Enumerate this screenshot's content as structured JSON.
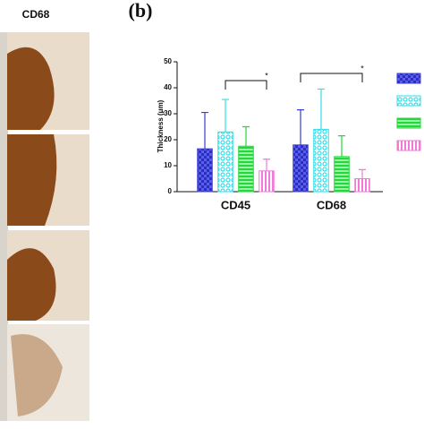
{
  "panel_label": "CD68",
  "chart_data": {
    "type": "bar",
    "panel": "(b)",
    "ylabel": "Thickness (μm)",
    "categories": [
      "CD45",
      "CD68"
    ],
    "ylim": [
      0,
      50
    ],
    "yticks": [
      0,
      10,
      20,
      30,
      40,
      50
    ],
    "series": [
      {
        "color": "#3b3fd6",
        "pattern": "check",
        "values": [
          16.5,
          18
        ],
        "errors": [
          14,
          13.5
        ]
      },
      {
        "color": "#2fe0ea",
        "pattern": "circles",
        "values": [
          23,
          24
        ],
        "errors": [
          12.5,
          15.5
        ]
      },
      {
        "color": "#22d83a",
        "pattern": "hlines",
        "values": [
          17.5,
          13.5
        ],
        "errors": [
          7.5,
          8
        ]
      },
      {
        "color": "#f07ad8",
        "pattern": "vlines",
        "values": [
          8,
          5
        ],
        "errors": [
          4.5,
          3.5
        ]
      }
    ],
    "annotations": [
      "*",
      "*"
    ]
  }
}
